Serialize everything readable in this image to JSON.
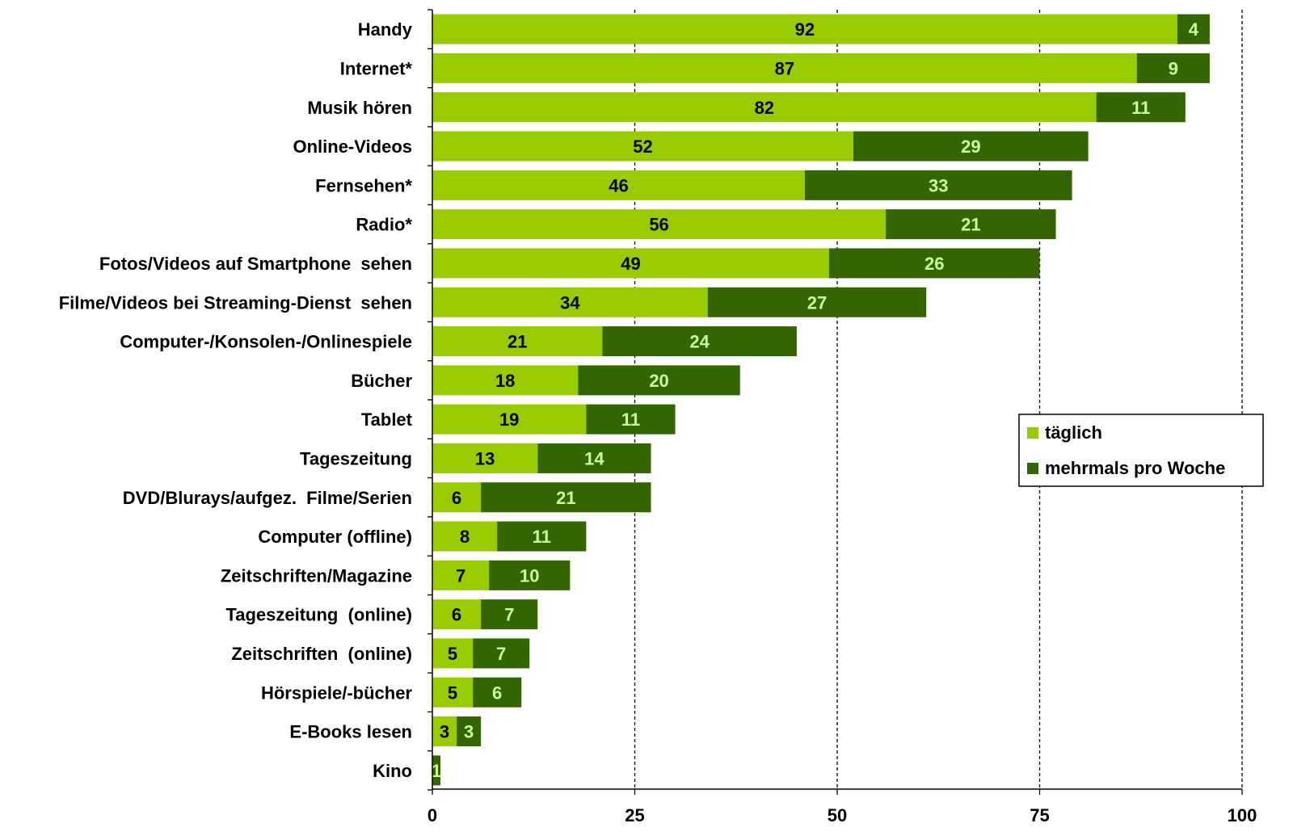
{
  "chart_data": {
    "type": "bar",
    "orientation": "horizontal",
    "stacked": true,
    "categories": [
      "Handy",
      "Internet*",
      "Musik hören",
      "Online-Videos",
      "Fernsehen*",
      "Radio*",
      "Fotos/Videos auf Smartphone  sehen",
      "Filme/Videos bei Streaming-Dienst  sehen",
      "Computer-/Konsolen-/Onlinespiele",
      "Bücher",
      "Tablet",
      "Tageszeitung",
      "DVD/Blurays/aufgez.  Filme/Serien",
      "Computer (offline)",
      "Zeitschriften/Magazine",
      "Tageszeitung  (online)",
      "Zeitschriften  (online)",
      "Hörspiele/-bücher",
      "E-Books lesen",
      "Kino"
    ],
    "series": [
      {
        "name": "täglich",
        "color": "#99cc00",
        "label_color": "#000000",
        "values": [
          92,
          87,
          82,
          52,
          46,
          56,
          49,
          34,
          21,
          18,
          19,
          13,
          6,
          8,
          7,
          6,
          5,
          5,
          3,
          0
        ]
      },
      {
        "name": "mehrmals pro Woche",
        "color": "#336600",
        "label_color": "#ccff99",
        "values": [
          4,
          9,
          11,
          29,
          33,
          21,
          26,
          27,
          24,
          20,
          11,
          14,
          21,
          11,
          10,
          7,
          7,
          6,
          3,
          1
        ]
      }
    ],
    "xlim": [
      0,
      100
    ],
    "xticks": [
      "0",
      "25",
      "50",
      "75",
      "100"
    ],
    "xtick_values": [
      0,
      25,
      50,
      75,
      100
    ],
    "grid": "vertical dashed",
    "legend_position": "right",
    "title": "",
    "xlabel": "",
    "ylabel": ""
  }
}
